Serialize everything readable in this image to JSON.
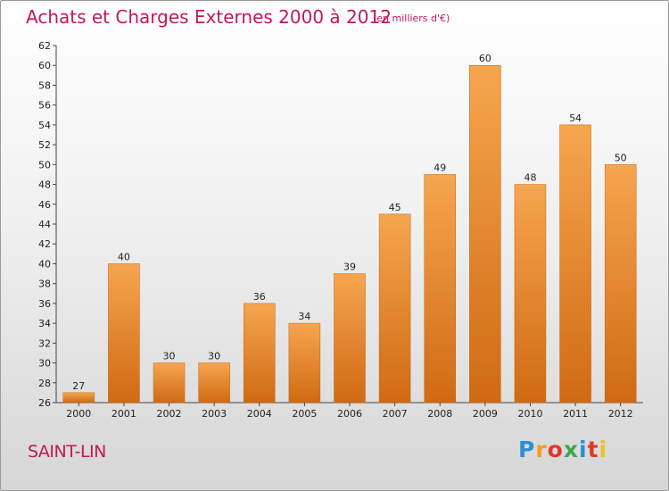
{
  "header": {
    "title": "Achats et Charges Externes 2000 à 2012",
    "subtitle": "(en milliers d'€)"
  },
  "footer": {
    "commune": "SAINT-LIN",
    "logo": {
      "letters": [
        "P",
        "r",
        "o",
        "x",
        "i",
        "t",
        "i"
      ],
      "colors": [
        "#2a8fd6",
        "#f29f1b",
        "#e0382c",
        "#3aa84a",
        "#2a8fd6",
        "#e0382c",
        "#f2c21b"
      ]
    }
  },
  "colors": {
    "bar_top": "#f6a64f",
    "bar_bottom": "#d06a12",
    "accent": "#c2185b"
  },
  "chart_data": {
    "type": "bar",
    "title": "Achats et Charges Externes 2000 à 2012",
    "subtitle": "(en milliers d'€)",
    "categories": [
      "2000",
      "2001",
      "2002",
      "2003",
      "2004",
      "2005",
      "2006",
      "2007",
      "2008",
      "2009",
      "2010",
      "2011",
      "2012"
    ],
    "values": [
      27,
      40,
      30,
      30,
      36,
      34,
      39,
      45,
      49,
      60,
      48,
      54,
      50
    ],
    "ylim": [
      26,
      62
    ],
    "yticks": [
      26,
      28,
      30,
      32,
      34,
      36,
      38,
      40,
      42,
      44,
      46,
      48,
      50,
      52,
      54,
      56,
      58,
      60,
      62
    ],
    "xlabel": "",
    "ylabel": "",
    "grid": false,
    "legend": "none"
  }
}
